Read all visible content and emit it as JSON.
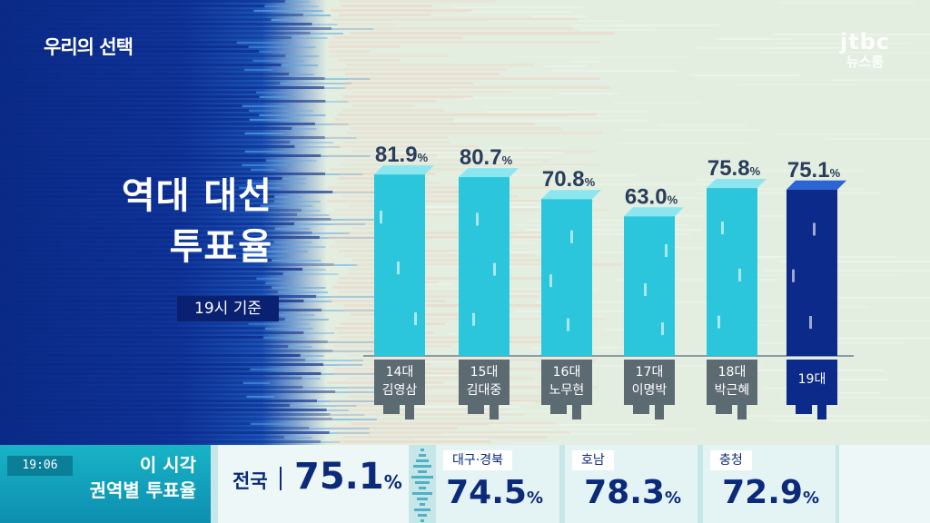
{
  "program_title": "우리의 선택",
  "logo": {
    "line1": "jtbc",
    "line2": "뉴스룸"
  },
  "headline": {
    "line1": "역대 대선",
    "line2": "투표율"
  },
  "basis": "19시 기준",
  "chart_data": {
    "type": "bar",
    "title": "역대 대선 투표율",
    "categories": [
      {
        "term": "14대",
        "winner": "김영삼"
      },
      {
        "term": "15대",
        "winner": "김대중"
      },
      {
        "term": "16대",
        "winner": "노무현"
      },
      {
        "term": "17대",
        "winner": "이명박"
      },
      {
        "term": "18대",
        "winner": "박근혜"
      },
      {
        "term": "19대",
        "winner": ""
      }
    ],
    "values": [
      81.9,
      80.7,
      70.8,
      63.0,
      75.8,
      75.1
    ],
    "value_labels": [
      "81.9",
      "80.7",
      "70.8",
      "63.0",
      "75.8",
      "75.1"
    ],
    "unit": "%",
    "highlight_index": 5,
    "colors": {
      "bar": "#2cc6dc",
      "bar_top": "#8ce6f0",
      "highlight": "#0c2a8a",
      "highlight_top": "#2c64d4",
      "label": "#2a3d5c"
    }
  },
  "ticker": {
    "time": "19:06",
    "heading_line1": "이 시각",
    "heading_line2": "권역별 투표율",
    "national": {
      "label": "전국",
      "value": "75.1",
      "unit": "%"
    },
    "regions": [
      {
        "label": "대구·경북",
        "value": "74.5",
        "unit": "%"
      },
      {
        "label": "호남",
        "value": "78.3",
        "unit": "%"
      },
      {
        "label": "충청",
        "value": "72.9",
        "unit": "%"
      }
    ]
  }
}
